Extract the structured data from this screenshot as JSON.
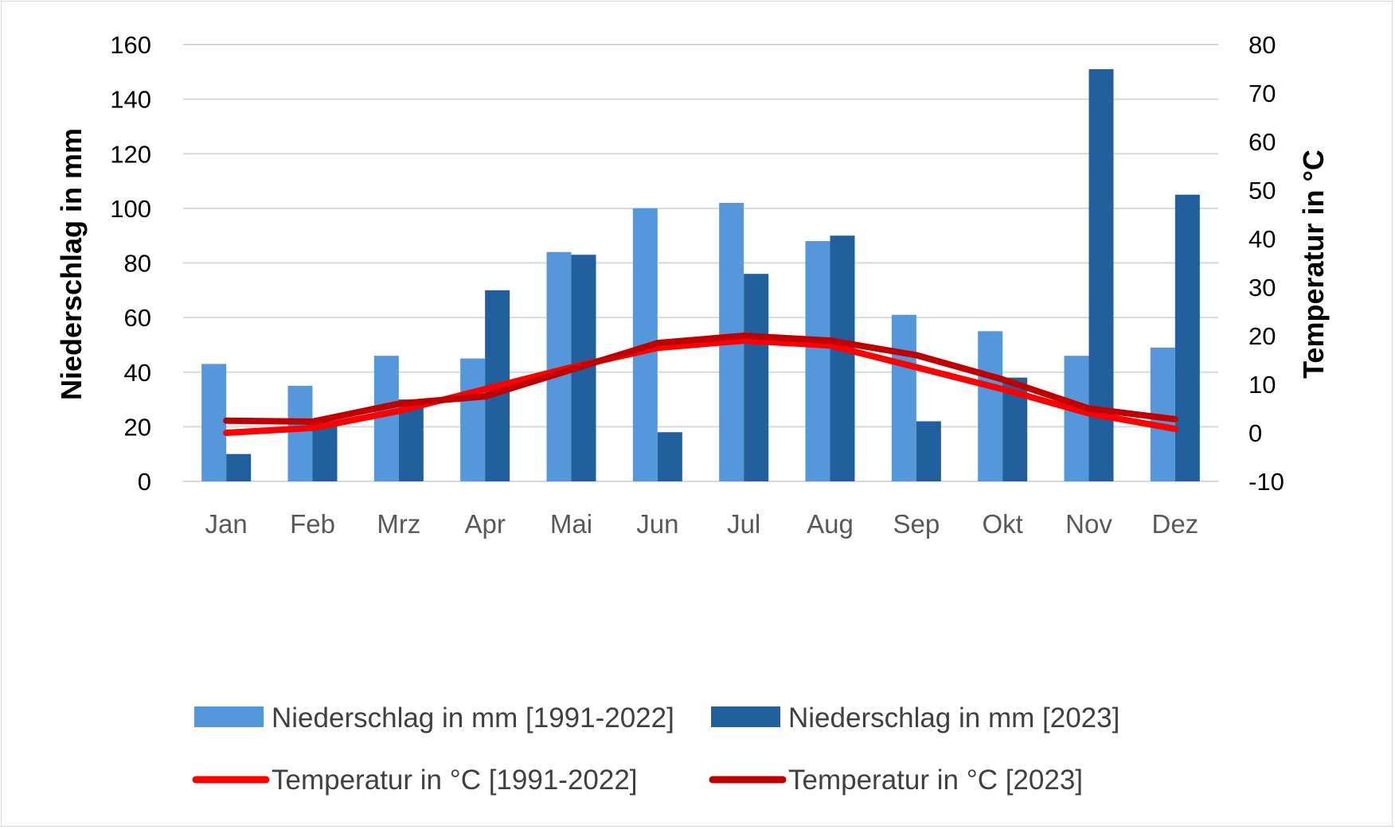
{
  "chart_data": {
    "type": "bar",
    "categories": [
      "Jan",
      "Feb",
      "Mrz",
      "Apr",
      "Mai",
      "Jun",
      "Jul",
      "Aug",
      "Sep",
      "Okt",
      "Nov",
      "Dez"
    ],
    "series": [
      {
        "name": "Niederschlag in mm [1991-2022]",
        "kind": "bar",
        "axis": "left",
        "color": "#5497DB",
        "values": [
          43,
          35,
          46,
          45,
          84,
          100,
          102,
          88,
          61,
          55,
          46,
          49
        ]
      },
      {
        "name": "Niederschlag in mm [2023]",
        "kind": "bar",
        "axis": "left",
        "color": "#22609D",
        "values": [
          10,
          22,
          30,
          70,
          83,
          18,
          76,
          90,
          22,
          38,
          151,
          105
        ]
      },
      {
        "name": "Temperatur in °C  [1991-2022]",
        "kind": "line",
        "axis": "right",
        "color": "#FF0000",
        "values": [
          0,
          1,
          4.5,
          9,
          13.5,
          17.5,
          19,
          18,
          13.5,
          9,
          4,
          0.8
        ]
      },
      {
        "name": "Temperatur in °C  [2023]",
        "kind": "line",
        "axis": "right",
        "color": "#C00000",
        "values": [
          2.5,
          2.3,
          6,
          7.5,
          13,
          18.5,
          20,
          19,
          16,
          11,
          5,
          2.8
        ]
      }
    ],
    "ylabel": "Niederschlag in mm",
    "y2label": "Temperatur in °C",
    "ylim": [
      0,
      160
    ],
    "y2lim": [
      -10,
      80
    ],
    "yticks": [
      0,
      20,
      40,
      60,
      80,
      100,
      120,
      140,
      160
    ],
    "y2ticks": [
      -10,
      0,
      10,
      20,
      30,
      40,
      50,
      60,
      70,
      80
    ],
    "grid": true,
    "legend": "bottom"
  }
}
